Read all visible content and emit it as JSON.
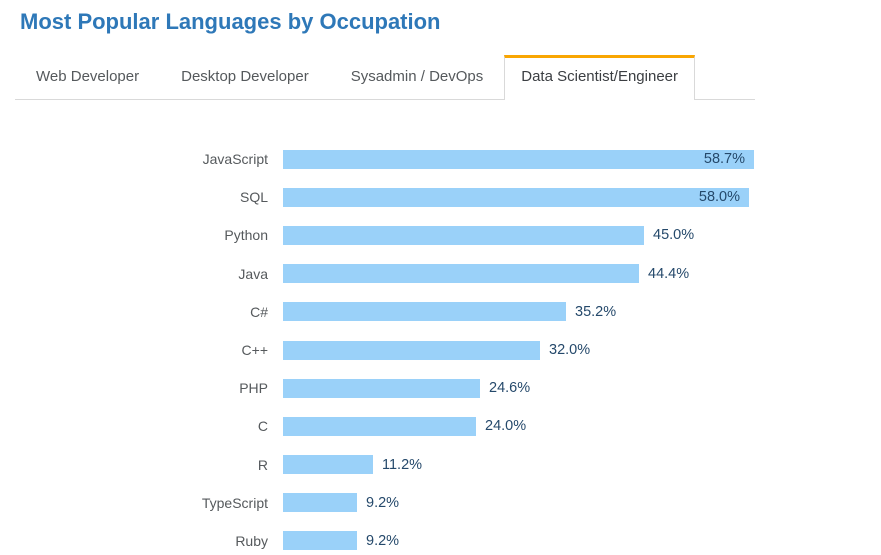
{
  "page": {
    "title": "Most Popular Languages by Occupation"
  },
  "tabs": [
    {
      "label": "Web Developer",
      "active": false
    },
    {
      "label": "Desktop Developer",
      "active": false
    },
    {
      "label": "Sysadmin / DevOps",
      "active": false
    },
    {
      "label": "Data Scientist/Engineer",
      "active": true
    }
  ],
  "chart_data": {
    "type": "bar",
    "orientation": "horizontal",
    "title": "Most Popular Languages by Occupation",
    "active_tab": "Data Scientist/Engineer",
    "categories": [
      "JavaScript",
      "SQL",
      "Python",
      "Java",
      "C#",
      "C++",
      "PHP",
      "C",
      "R",
      "TypeScript",
      "Ruby"
    ],
    "values": [
      58.7,
      58.0,
      45.0,
      44.4,
      35.2,
      32.0,
      24.6,
      24.0,
      11.2,
      9.2,
      9.2
    ],
    "value_labels": [
      "58.7%",
      "58.0%",
      "45.0%",
      "44.4%",
      "35.2%",
      "32.0%",
      "24.6%",
      "24.0%",
      "11.2%",
      "9.2%",
      "9.2%"
    ],
    "unit": "%",
    "xlabel": "",
    "ylabel": "",
    "xlim": [
      0,
      72
    ],
    "grid": false,
    "legend": false,
    "bar_color": "#9ad1f9",
    "value_label_color": "#25496b"
  },
  "colors": {
    "title_blue": "#2e78b8",
    "accent_orange": "#f9a602",
    "bar_blue": "#9ad1f9",
    "value_text": "#25496b",
    "category_text": "#55595c",
    "tab_inactive_text": "#55595c",
    "tab_active_text": "#3b3e42",
    "border_gray": "#d9d9d9"
  }
}
